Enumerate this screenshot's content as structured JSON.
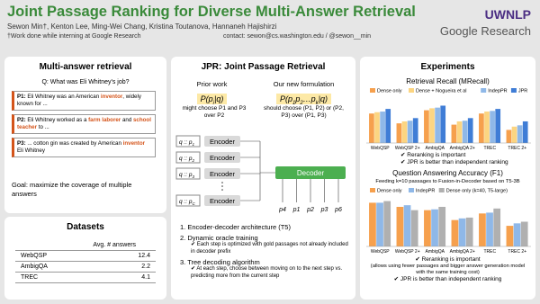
{
  "header": {
    "title": "Joint Passage Ranking for Diverse Multi-Answer Retrieval",
    "authors": "Sewon Min†, Kenton Lee, Ming-Wei Chang, Kristina Toutanova, Hannaneh Hajishirzi",
    "note": "†Work done while interning at Google Research",
    "contact": "contact: sewon@cs.washington.edu / @sewon__min",
    "logos": [
      "UWNLP",
      "Google Research"
    ]
  },
  "task": {
    "title": "Multi-answer retrieval",
    "question": "Q: What was Eli Whitney's job?",
    "passages": [
      [
        "P1:",
        " Eli Whitney was an American ",
        "inventor",
        ", widely known for ..."
      ],
      [
        "P2:",
        " Eli Whitney worked as a ",
        "farm laborer",
        " and ",
        "school teacher",
        " to ..."
      ],
      [
        "P3:",
        " ... cotton gin was created by American ",
        "inventor",
        " Eli Whitney"
      ]
    ],
    "goal": "Goal: maximize the coverage of multiple answers"
  },
  "datasets": {
    "title": "Datasets",
    "table": {
      "header": [
        "Avg. # answers"
      ],
      "rows": [
        [
          "WebQSP",
          12.4
        ],
        [
          "AmbigQA",
          2.2
        ],
        [
          "TREC",
          4.1
        ]
      ]
    }
  },
  "jpr": {
    "title": "JPR: Joint Passage Retrieval",
    "prior": {
      "label": "Prior work",
      "formula": [
        "P(p",
        "i",
        "|q)"
      ],
      "note": "might choose P1 and P3 over P2"
    },
    "ours": {
      "label": "Our new formulation",
      "formula": [
        "P(p",
        "1",
        "p",
        "2",
        "…p",
        "k",
        "|q)"
      ],
      "note": "should choose (P1, P2) or (P2, P3) over (P1, P3)"
    },
    "diagram": {
      "inputs": [
        [
          "q :: p",
          "1"
        ],
        [
          "q :: p",
          "2"
        ],
        [
          "q :: p",
          "3"
        ],
        [
          "q :: p",
          "C"
        ]
      ],
      "encoder": "Encoder",
      "decoder": "Decoder",
      "outputs": [
        "p4",
        "p1",
        "p2",
        "p3",
        "p6"
      ]
    },
    "steps": [
      {
        "title": "1.  Encoder-decoder architecture (T5)"
      },
      {
        "title": "2.  Dynamic oracle training",
        "detail": "✔ Each step is optimized with gold passages not already included in decoder prefix"
      },
      {
        "title": "3.  Tree decoding algorithm",
        "detail": "✔ At each step, choose between moving on to the next step vs. predicting more from the current step"
      }
    ]
  },
  "experiments": {
    "title": "Experiments",
    "charts": [
      {
        "type": "bar",
        "title": "Retrieval Recall (MRecall)",
        "categories": [
          "WebQSP",
          "WebQSP 2+",
          "AmbigQA",
          "AmbigQA 2+",
          "TREC",
          "TREC 2+"
        ],
        "ylim": [
          0,
          70
        ],
        "series": [
          {
            "name": "Dense only",
            "color": "#f6a04d",
            "values": [
              45,
              30,
              50,
              28,
              45,
              20
            ]
          },
          {
            "name": "Dense + Nogueira et al",
            "color": "#fcd581",
            "values": [
              47,
              33,
              53,
              33,
              48,
              25
            ]
          },
          {
            "name": "IndepPR",
            "color": "#8fb8e8",
            "values": [
              48,
              34,
              54,
              34,
              49,
              27
            ]
          },
          {
            "name": "JPR",
            "color": "#3f7dd6",
            "values": [
              52,
              38,
              57,
              38,
              52,
              33
            ]
          }
        ]
      },
      {
        "type": "bar",
        "title": "Question Answering Accuracy (F1)",
        "subtitle": "Feeding k=10 passages to Fusion-in-Decoder based on T5-3B",
        "categories": [
          "WebQSP",
          "WebQSP 2+",
          "AmbigQA",
          "AmbigQA 2+",
          "TREC",
          "TREC 2+"
        ],
        "ylim": [
          0,
          60
        ],
        "series": [
          {
            "name": "Dense only",
            "color": "#f6a04d",
            "values": [
              53,
              48,
              44,
              32,
              40,
              25
            ]
          },
          {
            "name": "IndepPR",
            "color": "#8fb8e8",
            "values": [
              53,
              50,
              45,
              34,
              41,
              28
            ]
          },
          {
            "name": "Dense only (k=40, T5-large)",
            "color": "#b0b0b0",
            "values": [
              55,
              44,
              48,
              35,
              46,
              30
            ]
          }
        ]
      }
    ],
    "findings1": [
      "✔ Reranking is important",
      "✔ JPR is better than independent ranking"
    ],
    "findings2": [
      "✔ Reranking is important",
      "(allows using fewer passages and bigger answer generation model with the same training cost)",
      "✔ JPR is better than independent ranking"
    ]
  }
}
